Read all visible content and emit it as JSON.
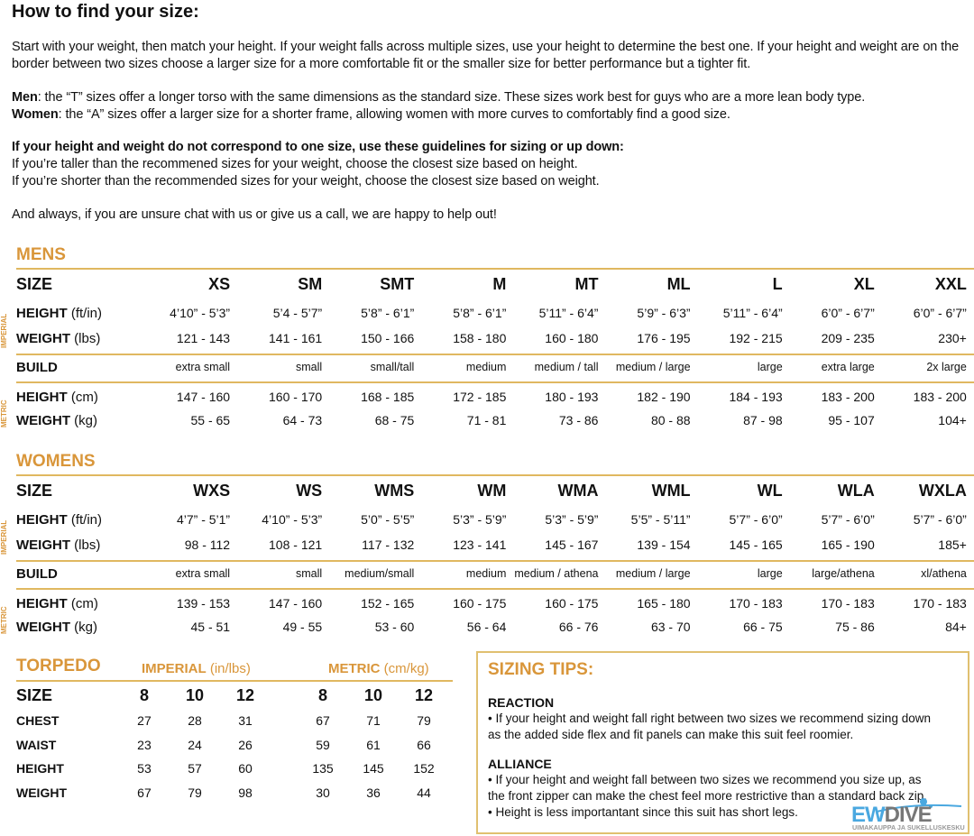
{
  "heading": "How to find your size:",
  "intro": "Start with your weight, then match your height. If your weight falls across multiple sizes, use your height to determine the best one. If your height and weight are on the border between two sizes choose a larger size for a more comfortable fit or the smaller size for better performance but a tighter fit.",
  "men_label": "Men",
  "men_text": ": the “T” sizes offer a longer torso with the same dimensions as the standard size. These sizes work best for guys who are a more lean body type.",
  "women_label": "Women",
  "women_text": ": the “A” sizes offer a larger size for a shorter frame, allowing women with more curves to comfortably find a good size.",
  "guide_title": "If your height and weight do not correspond to one size, use these guidelines for sizing or up down:",
  "guide_1": "If you’re taller than the recommened sizes for your weight, choose the closest size based on height.",
  "guide_2": "If you’re shorter than the recommended sizes for your weight, choose the closest size based on weight.",
  "closing": "And always, if you are unsure chat with us or give us a call, we are happy to help out!",
  "side_imperial": "IMPERIAL",
  "side_metric": "METRIC",
  "tables": [
    {
      "title": "MENS",
      "rows": [
        {
          "type": "size",
          "label": "SIZE",
          "unit": "",
          "values": [
            "XS",
            "SM",
            "SMT",
            "M",
            "MT",
            "ML",
            "L",
            "XL",
            "XXL"
          ]
        },
        {
          "type": "",
          "label": "HEIGHT",
          "unit": " (ft/in)",
          "values": [
            "4’10” - 5’3”",
            "5’4 - 5’7”",
            "5’8” - 6’1”",
            "5’8” - 6’1”",
            "5’11” - 6’4”",
            "5’9” - 6’3”",
            "5’11” - 6’4”",
            "6’0” - 6’7”",
            "6’0” - 6’7”"
          ]
        },
        {
          "type": "",
          "label": "WEIGHT",
          "unit": " (lbs)",
          "values": [
            "121 - 143",
            "141 - 161",
            "150 - 166",
            "158 - 180",
            "160 - 180",
            "176 - 195",
            "192 - 215",
            "209 - 235",
            "230+"
          ]
        },
        {
          "type": "build",
          "label": "BUILD",
          "unit": "",
          "values": [
            "extra small",
            "small",
            "small/tall",
            "medium",
            "medium / tall",
            "medium / large",
            "large",
            "extra large",
            "2x large"
          ]
        },
        {
          "type": "",
          "label": "HEIGHT",
          "unit": " (cm)",
          "values": [
            "147 - 160",
            "160 - 170",
            "168 - 185",
            "172 - 185",
            "180 - 193",
            "182 - 190",
            "184 - 193",
            "183 - 200",
            "183 - 200"
          ]
        },
        {
          "type": "",
          "label": "WEIGHT",
          "unit": " (kg)",
          "values": [
            "55 - 65",
            "64 - 73",
            "68 - 75",
            "71 - 81",
            "73 - 86",
            "80 - 88",
            "87 - 98",
            "95 - 107",
            "104+"
          ]
        }
      ]
    },
    {
      "title": "WOMENS",
      "rows": [
        {
          "type": "size",
          "label": "SIZE",
          "unit": "",
          "values": [
            "WXS",
            "WS",
            "WMS",
            "WM",
            "WMA",
            "WML",
            "WL",
            "WLA",
            "WXLA"
          ]
        },
        {
          "type": "",
          "label": "HEIGHT",
          "unit": " (ft/in)",
          "values": [
            "4’7” - 5’1”",
            "4’10” - 5’3”",
            "5’0” - 5’5”",
            "5’3” - 5’9”",
            "5’3” - 5’9”",
            "5’5” - 5’11”",
            "5’7” - 6’0”",
            "5’7” - 6’0”",
            "5’7” - 6’0”"
          ]
        },
        {
          "type": "",
          "label": "WEIGHT",
          "unit": " (lbs)",
          "values": [
            "98 - 112",
            "108 - 121",
            "117 - 132",
            "123 - 141",
            "145 - 167",
            "139 - 154",
            "145 - 165",
            "165 - 190",
            "185+"
          ]
        },
        {
          "type": "build",
          "label": "BUILD",
          "unit": "",
          "values": [
            "extra small",
            "small",
            "medium/small",
            "medium",
            "medium / athena",
            "medium / large",
            "large",
            "large/athena",
            "xl/athena"
          ]
        },
        {
          "type": "",
          "label": "HEIGHT",
          "unit": " (cm)",
          "values": [
            "139 - 153",
            "147 - 160",
            "152 - 165",
            "160 - 175",
            "160 - 175",
            "165 - 180",
            "170 - 183",
            "170 - 183",
            "170 - 183"
          ]
        },
        {
          "type": "",
          "label": "WEIGHT",
          "unit": " (kg)",
          "values": [
            "45 - 51",
            "49 - 55",
            "53 - 60",
            "56 - 64",
            "66 - 76",
            "63 - 70",
            "66 - 75",
            "75 - 86",
            "84+"
          ]
        }
      ]
    }
  ],
  "torpedo": {
    "title": "TORPEDO",
    "imperial": "IMPERIAL",
    "imperial_unit": " (in/lbs)",
    "metric": "METRIC",
    "metric_unit": " (cm/kg)",
    "rows": [
      {
        "label": "SIZE",
        "values": [
          "8",
          "10",
          "12",
          "8",
          "10",
          "12"
        ]
      },
      {
        "label": "CHEST",
        "values": [
          "27",
          "28",
          "31",
          "67",
          "71",
          "79"
        ]
      },
      {
        "label": "WAIST",
        "values": [
          "23",
          "24",
          "26",
          "59",
          "61",
          "66"
        ]
      },
      {
        "label": "HEIGHT",
        "values": [
          "53",
          "57",
          "60",
          "135",
          "145",
          "152"
        ]
      },
      {
        "label": "WEIGHT",
        "values": [
          "67",
          "79",
          "98",
          "30",
          "36",
          "44"
        ]
      }
    ]
  },
  "tips": {
    "title": "SIZING TIPS:",
    "reaction_title": "REACTION",
    "reaction_1": "• If your height and weight fall right between two sizes we recommend sizing down as the added side flex and fit panels can make this suit feel roomier.",
    "alliance_title": "ALLIANCE",
    "alliance_1": "• If your height and weight fall between two sizes we recommend you size up, as the front zipper can make the chest feel more restrictive than a standard back zip.",
    "alliance_2": "• Height is less importantant since this suit has short legs."
  },
  "watermark": {
    "brand": "EWDIVE",
    "tagline": "UIMAKAUPPA JA SUKELLUSKESKUS"
  },
  "colors": {
    "accent": "#d9963a",
    "rule": "#e0b860",
    "watermark_blue": "#4aa8e0"
  }
}
